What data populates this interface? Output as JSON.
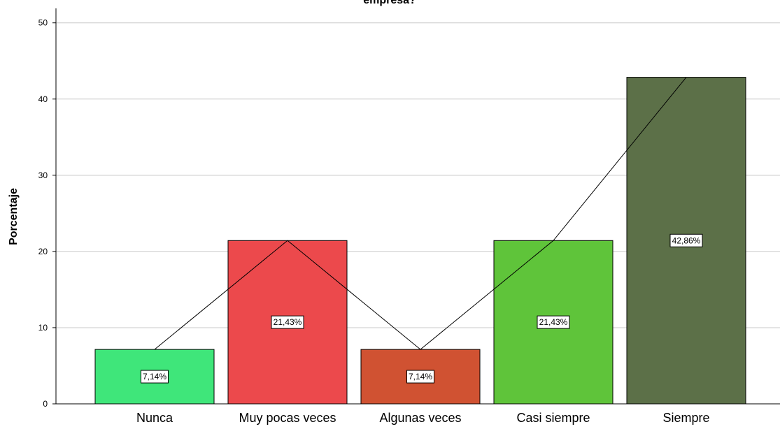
{
  "chart_data": {
    "type": "bar",
    "title": "empresa?",
    "xlabel": "",
    "ylabel": "Porcentaje",
    "categories": [
      "Nunca",
      "Muy pocas veces",
      "Algunas veces",
      "Casi siempre",
      "Siempre"
    ],
    "values": [
      7.14,
      21.43,
      7.14,
      21.43,
      42.86
    ],
    "data_labels": [
      "7,14%",
      "21,43%",
      "7,14%",
      "21,43%",
      "42,86%"
    ],
    "colors": [
      "#3fe67a",
      "#ec494c",
      "#d05232",
      "#5fc43a",
      "#5c7048"
    ],
    "ylim": [
      0,
      53
    ],
    "yticks": [
      0,
      10,
      20,
      30,
      40,
      50
    ],
    "grid": true,
    "line_overlay": true
  }
}
